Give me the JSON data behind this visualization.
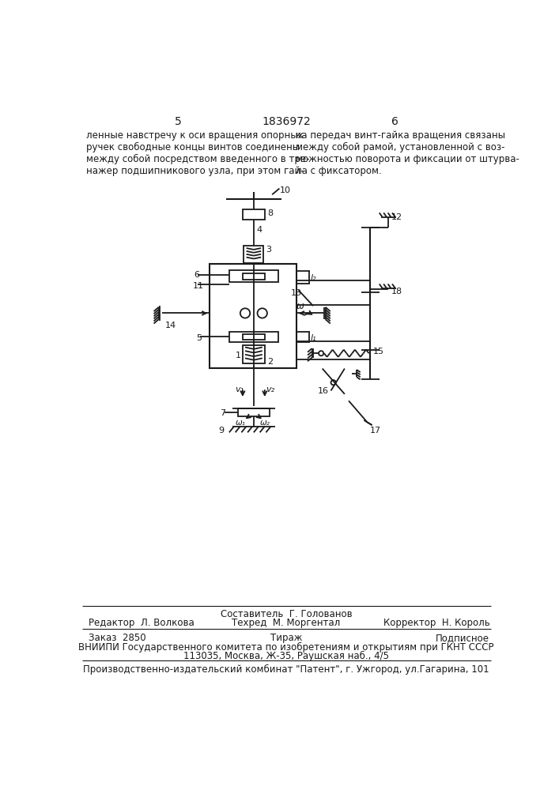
{
  "page_number_left": "5",
  "page_number_center": "1836972",
  "page_number_right": "6",
  "text_left": "ленные навстречу к оси вращения опорных\nручек свободные концы винтов соединены\nмежду собой посредством введенного в тре-\nнажер подшипникового узла, при этом гай-",
  "text_right": "ка передач винт-гайка вращения связаны\nмежду собой рамой, установленной с воз-\nможностью поворота и фиксации от штурва-\nла с фиксатором.",
  "footer_line1": "Составитель  Г. Голованов",
  "footer_line2_left": "Редактор  Л. Волкова",
  "footer_line2_center": "Техред  М. Моргентал",
  "footer_line2_right": "Корректор  Н. Король",
  "footer_line3_left": "Заказ  2850",
  "footer_line3_center": "Тираж",
  "footer_line3_right": "Подписное",
  "footer_line4": "ВНИИПИ Государственного комитета по изобретениям и открытиям при ГКНТ СССР",
  "footer_line5": "113035, Москва, Ж-35, Раушская наб., 4/5",
  "footer_line6": "Производственно-издательский комбинат \"Патент\", г. Ужгород, ул.Гагарина, 101",
  "bg_color": "#ffffff",
  "line_color": "#1a1a1a"
}
